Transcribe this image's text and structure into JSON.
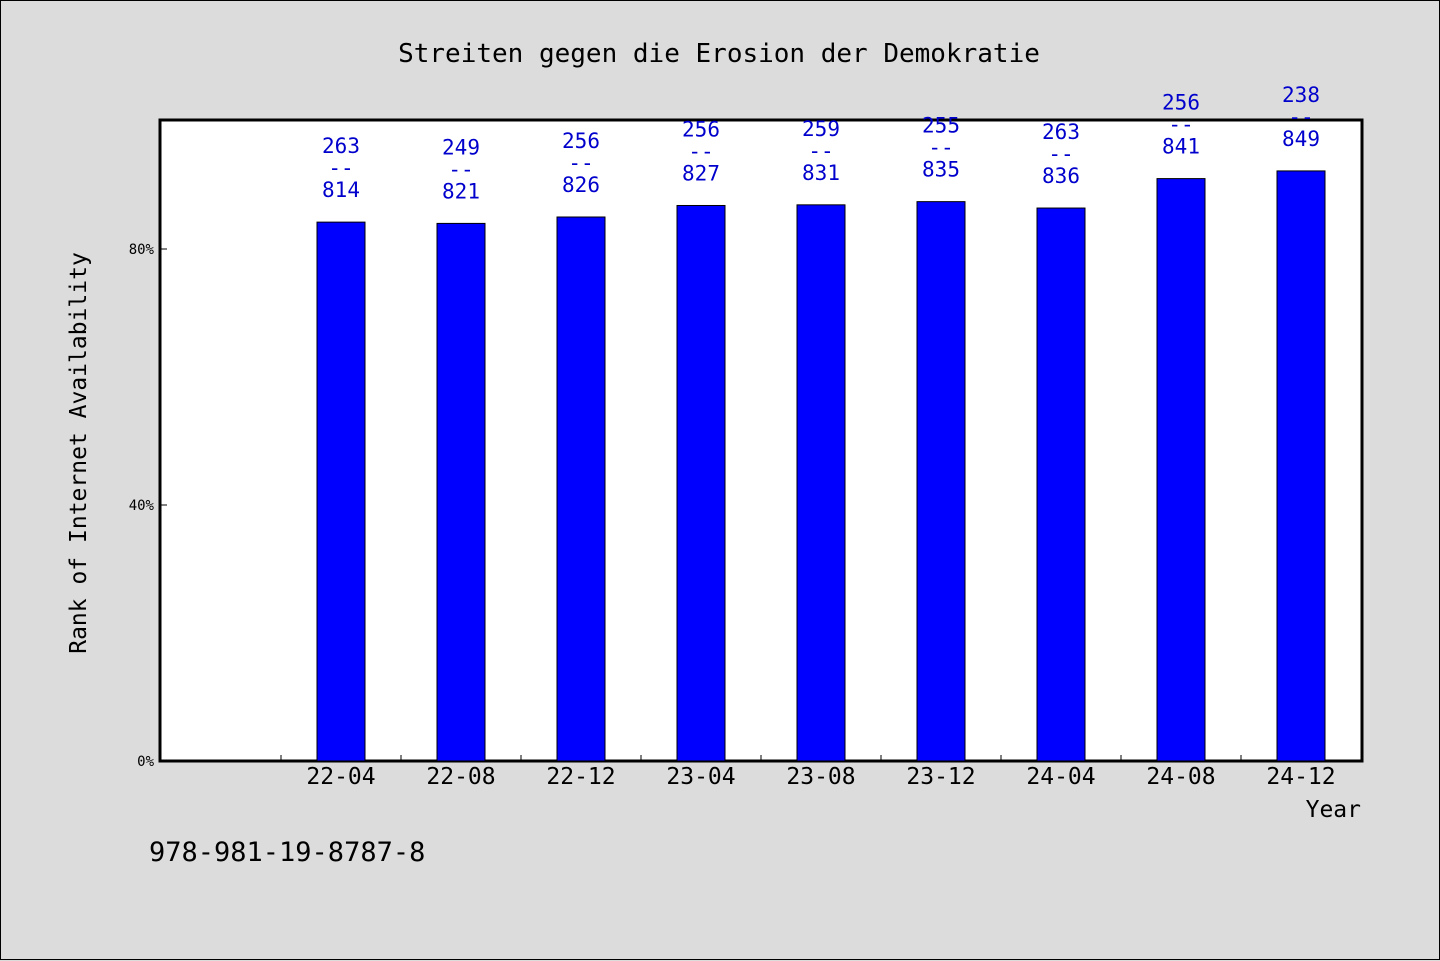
{
  "chart_data": {
    "type": "bar",
    "title": "Streiten gegen die Erosion der Demokratie",
    "xlabel": "Year",
    "ylabel": "Rank of Internet Availability",
    "ylim": [
      0,
      100
    ],
    "yticks": [
      {
        "value": 0,
        "label": "0%"
      },
      {
        "value": 40,
        "label": "40%"
      },
      {
        "value": 80,
        "label": "80%"
      }
    ],
    "categories": [
      "22-04",
      "22-08",
      "22-12",
      "23-04",
      "23-08",
      "23-12",
      "24-04",
      "24-08",
      "24-12"
    ],
    "values": [
      84.2,
      84.0,
      85.0,
      86.8,
      86.9,
      87.4,
      86.4,
      91.0,
      92.2
    ],
    "data_labels": [
      [
        "263",
        "--",
        "814"
      ],
      [
        "249",
        "--",
        "821"
      ],
      [
        "256",
        "--",
        "826"
      ],
      [
        "256",
        "--",
        "827"
      ],
      [
        "259",
        "--",
        "831"
      ],
      [
        "255",
        "--",
        "835"
      ],
      [
        "263",
        "--",
        "836"
      ],
      [
        "256",
        "--",
        "841"
      ],
      [
        "238",
        "--",
        "849"
      ]
    ],
    "bar_color": "#0000ff",
    "label_color": "#0000cc",
    "grid": false,
    "legend": "none"
  },
  "footer_text": "978-981-19-8787-8"
}
